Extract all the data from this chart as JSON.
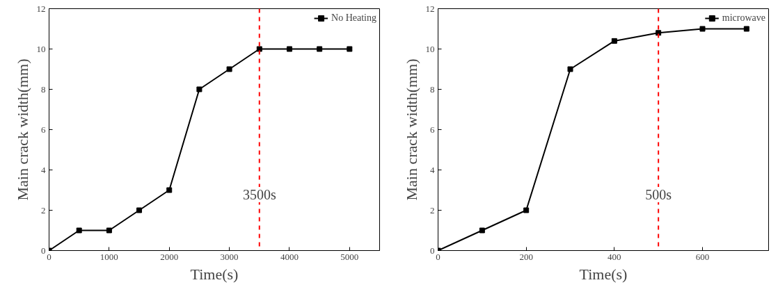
{
  "chart_data": [
    {
      "type": "line",
      "xlabel": "Time(s)",
      "ylabel": "Main crack width(mm)",
      "x": [
        0,
        500,
        1000,
        1500,
        2000,
        2500,
        3000,
        3500,
        4000,
        4500,
        5000
      ],
      "series": [
        {
          "name": "No Heating",
          "color": "#000000",
          "values": [
            0,
            1,
            1,
            2,
            3,
            8,
            9,
            10,
            10,
            10,
            10
          ]
        }
      ],
      "xlim": [
        0,
        5500
      ],
      "xticks": [
        0,
        1000,
        2000,
        3000,
        4000,
        5000
      ],
      "ylim": [
        0,
        12
      ],
      "yticks": [
        0,
        2,
        4,
        6,
        8,
        10,
        12
      ],
      "ref_lines": [
        {
          "axis": "x",
          "value": 3500,
          "label": "3500s",
          "color": "#ff0000",
          "line_style": "dashed"
        }
      ],
      "grid": false,
      "legend": "top right",
      "marker": "square",
      "line_style": "solid"
    },
    {
      "type": "line",
      "xlabel": "Time(s)",
      "ylabel": "Main crack width(mm)",
      "x": [
        0,
        100,
        200,
        300,
        400,
        500,
        600,
        700
      ],
      "series": [
        {
          "name": "microwave",
          "color": "#000000",
          "values": [
            0,
            1,
            2,
            9,
            10.4,
            10.8,
            11,
            11
          ]
        }
      ],
      "xlim": [
        0,
        750
      ],
      "xticks": [
        0,
        200,
        400,
        600
      ],
      "ylim": [
        0,
        12
      ],
      "yticks": [
        0,
        2,
        4,
        6,
        8,
        10,
        12
      ],
      "ref_lines": [
        {
          "axis": "x",
          "value": 500,
          "label": "500s",
          "color": "#ff0000",
          "line_style": "dashed"
        }
      ],
      "grid": false,
      "legend": "top right",
      "marker": "square",
      "line_style": "solid"
    }
  ]
}
